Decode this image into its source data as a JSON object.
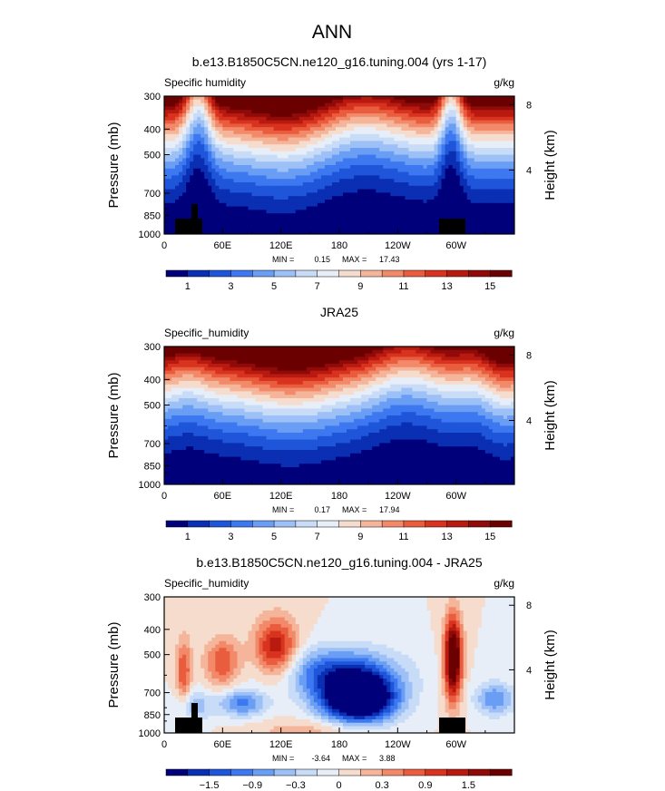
{
  "suptitle": "ANN",
  "chart_data": [
    {
      "type": "heatmap",
      "title": "b.e13.B1850C5CN.ne120_g16.tuning.004 (yrs 1-17)",
      "left_label": "Specific humidity",
      "units": "g/kg",
      "ylabel": "Pressure (mb)",
      "y2label": "Height (km)",
      "pressure_ticks": [
        "300",
        "400",
        "500",
        "700",
        "850",
        "1000"
      ],
      "height_ticks": [
        "8",
        "4"
      ],
      "x_ticks": [
        "0",
        "60E",
        "120E",
        "180",
        "120W",
        "60W"
      ],
      "stats": {
        "min_label": "MIN =",
        "min": "0.15",
        "max_label": "MAX =",
        "max": "17.43"
      },
      "colorbar_labels": [
        "1",
        "3",
        "5",
        "7",
        "9",
        "11",
        "13",
        "15"
      ],
      "colorbar_colors": [
        "#00007a",
        "#0a2fb3",
        "#1f55d9",
        "#3d78f0",
        "#6a9ef5",
        "#9dc0f7",
        "#c8dcf8",
        "#e8eef8",
        "#f6dccd",
        "#f5b59a",
        "#f28a6a",
        "#ea5c3e",
        "#d8331f",
        "#b91a10",
        "#8f0a08",
        "#6b0000"
      ],
      "field": "q_model"
    },
    {
      "type": "heatmap",
      "title": "JRA25",
      "left_label": "Specific_humidity",
      "units": "g/kg",
      "ylabel": "Pressure (mb)",
      "y2label": "Height (km)",
      "pressure_ticks": [
        "300",
        "400",
        "500",
        "700",
        "850",
        "1000"
      ],
      "height_ticks": [
        "8",
        "4"
      ],
      "x_ticks": [
        "0",
        "60E",
        "120E",
        "180",
        "120W",
        "60W"
      ],
      "stats": {
        "min_label": "MIN =",
        "min": "0.17",
        "max_label": "MAX =",
        "max": "17.94"
      },
      "colorbar_labels": [
        "1",
        "3",
        "5",
        "7",
        "9",
        "11",
        "13",
        "15"
      ],
      "colorbar_colors": [
        "#00007a",
        "#0a2fb3",
        "#1f55d9",
        "#3d78f0",
        "#6a9ef5",
        "#9dc0f7",
        "#c8dcf8",
        "#e8eef8",
        "#f6dccd",
        "#f5b59a",
        "#f28a6a",
        "#ea5c3e",
        "#d8331f",
        "#b91a10",
        "#8f0a08",
        "#6b0000"
      ],
      "field": "q_obs"
    },
    {
      "type": "heatmap",
      "title": "b.e13.B1850C5CN.ne120_g16.tuning.004 - JRA25",
      "left_label": "Specific_humidity",
      "units": "g/kg",
      "ylabel": "Pressure (mb)",
      "y2label": "Height (km)",
      "pressure_ticks": [
        "300",
        "400",
        "500",
        "700",
        "850",
        "1000"
      ],
      "height_ticks": [
        "8",
        "4"
      ],
      "x_ticks": [
        "0",
        "60E",
        "120E",
        "180",
        "120W",
        "60W"
      ],
      "stats": {
        "min_label": "MIN =",
        "min": "-3.64",
        "max_label": "MAX =",
        "max": "3.88"
      },
      "colorbar_labels": [
        "−1.5",
        "−0.9",
        "−0.3",
        "0",
        "0.3",
        "0.9",
        "1.5"
      ],
      "colorbar_colors": [
        "#00007a",
        "#0a2fb3",
        "#1f55d9",
        "#3d78f0",
        "#6a9ef5",
        "#9dc0f7",
        "#c8dcf8",
        "#e8eef8",
        "#f6dccd",
        "#f5b59a",
        "#f28a6a",
        "#ea5c3e",
        "#d8331f",
        "#b91a10",
        "#8f0a08",
        "#6b0000"
      ],
      "field": "q_diff"
    }
  ]
}
